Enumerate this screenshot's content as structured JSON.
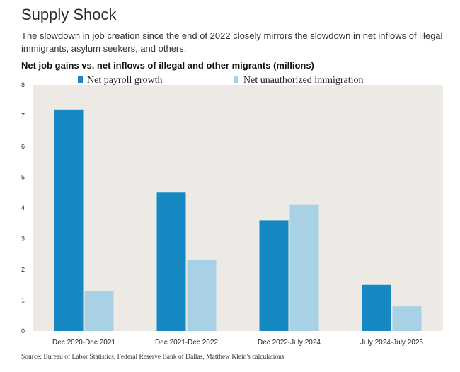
{
  "title": "Supply Shock",
  "subtitle": "The slowdown in job creation since the end of 2022 closely mirrors the slowdown in net inflows of illegal immigrants, asylum seekers, and others.",
  "chart_heading": "Net job gains vs. net inflows of illegal and other migrants (millions)",
  "source": "Source: Bureau of Labor Statistics, Federal Reserve Bank of Dallas, Matthew Klein's calculations",
  "colors": {
    "plot_background": "#ede9e4",
    "payroll": "#1689c2",
    "immigration": "#a9d1e5"
  },
  "chart_data": {
    "type": "bar",
    "title": "Net job gains vs. net inflows of illegal and other migrants (millions)",
    "categories": [
      "Dec 2020-Dec 2021",
      "Dec 2021-Dec 2022",
      "Dec 2022-July 2024",
      "July 2024-July 2025"
    ],
    "series": [
      {
        "name": "Net payroll growth",
        "values": [
          7.2,
          4.5,
          3.6,
          1.5
        ]
      },
      {
        "name": "Net unauthorized immigration",
        "values": [
          1.3,
          2.3,
          4.1,
          0.8
        ]
      }
    ],
    "yticks": [
      "0",
      "1",
      "2",
      "3",
      "4",
      "5",
      "6",
      "7",
      "8"
    ],
    "ylim": [
      0,
      8
    ],
    "grid": false,
    "legend_position": "top"
  }
}
